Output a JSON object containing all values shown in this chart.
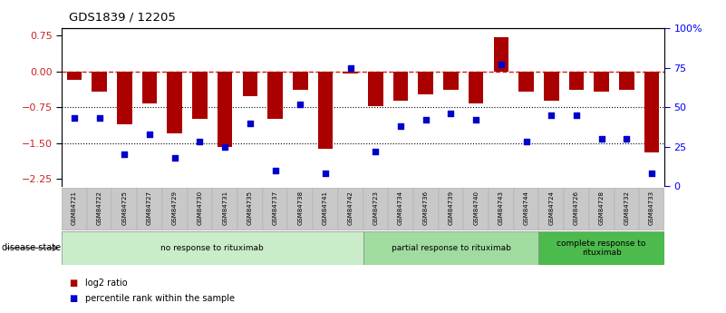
{
  "title": "GDS1839 / 12205",
  "samples": [
    "GSM84721",
    "GSM84722",
    "GSM84725",
    "GSM84727",
    "GSM84729",
    "GSM84730",
    "GSM84731",
    "GSM84735",
    "GSM84737",
    "GSM84738",
    "GSM84741",
    "GSM84742",
    "GSM84723",
    "GSM84734",
    "GSM84736",
    "GSM84739",
    "GSM84740",
    "GSM84743",
    "GSM84744",
    "GSM84724",
    "GSM84726",
    "GSM84728",
    "GSM84732",
    "GSM84733"
  ],
  "log2_ratio": [
    -0.18,
    -0.42,
    -1.1,
    -0.68,
    -1.3,
    -1.0,
    -1.58,
    -0.52,
    -1.0,
    -0.38,
    -1.62,
    -0.04,
    -0.72,
    -0.62,
    -0.48,
    -0.38,
    -0.68,
    0.72,
    -0.42,
    -0.62,
    -0.38,
    -0.42,
    -0.38,
    -1.7
  ],
  "percentile_rank": [
    43,
    43,
    20,
    33,
    18,
    28,
    25,
    40,
    10,
    52,
    8,
    75,
    22,
    38,
    42,
    46,
    42,
    77,
    28,
    45,
    45,
    30,
    30,
    8
  ],
  "groups": [
    {
      "label": "no response to rituximab",
      "start": 0,
      "end": 12,
      "color": "#c8edc8"
    },
    {
      "label": "partial response to rituximab",
      "start": 12,
      "end": 19,
      "color": "#a0dca0"
    },
    {
      "label": "complete response to\nrituximab",
      "start": 19,
      "end": 24,
      "color": "#4cba4c"
    }
  ],
  "bar_color": "#aa0000",
  "dot_color": "#0000cc",
  "ylim_left": [
    -2.4,
    0.9
  ],
  "ylim_right": [
    0,
    100
  ],
  "yticks_left": [
    0.75,
    0,
    -0.75,
    -1.5,
    -2.25
  ],
  "yticks_right": [
    0,
    25,
    50,
    75,
    100
  ],
  "hlines": [
    -0.75,
    -1.5
  ],
  "disease_state_label": "disease state",
  "legend_labels": [
    "log2 ratio",
    "percentile rank within the sample"
  ],
  "legend_colors": [
    "#aa0000",
    "#0000cc"
  ],
  "bg_color": "#ffffff",
  "sample_bg_color": "#c8c8c8"
}
